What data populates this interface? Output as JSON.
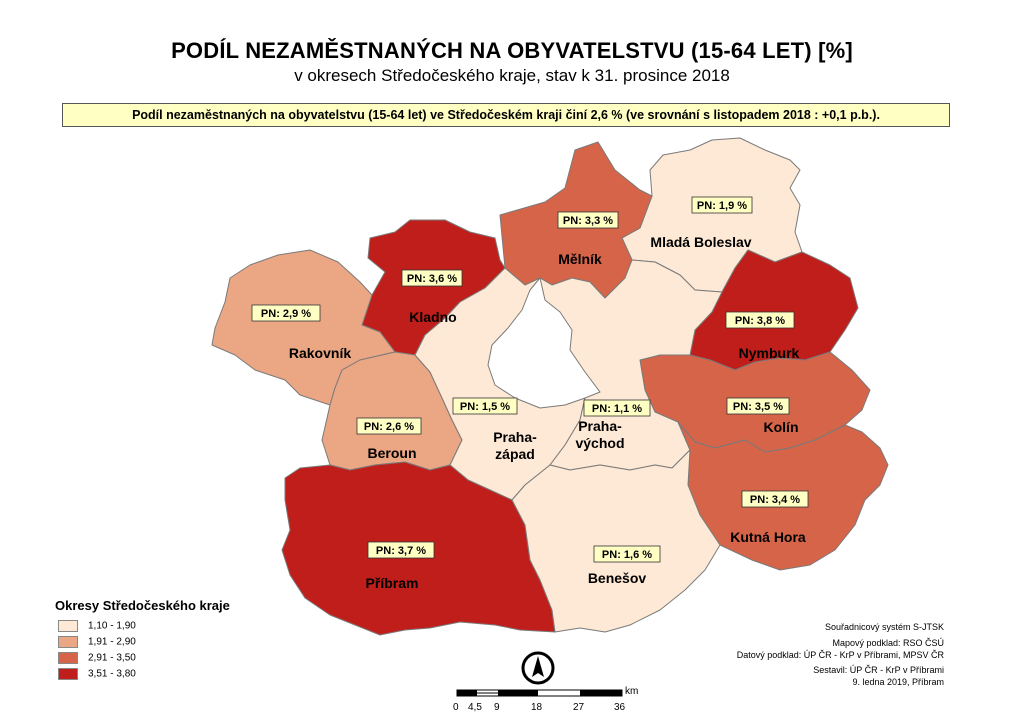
{
  "title": "PODÍL NEZAMĚSTNANÝCH NA OBYVATELSTVU (15-64 LET) [%]",
  "subtitle": "v okresech Středočeského kraje, stav k 31. prosince 2018",
  "info": "Podíl nezaměstnaných na obyvatelstvu (15-64 let) ve Středočeském kraji činí 2,6 % (ve srovnání s listopadem 2018 :   +0,1 p.b.).",
  "colors": {
    "class1": "#fde9d5",
    "class2": "#eba684",
    "class3": "#d56449",
    "class4": "#c01e1a",
    "border": "#7a7a7a"
  },
  "districts": [
    {
      "name": "Mladá Boleslav",
      "label": "PN: 1,9 %",
      "value": 1.9,
      "class": 1
    },
    {
      "name": "Mělník",
      "label": "PN: 3,3 %",
      "value": 3.3,
      "class": 3
    },
    {
      "name": "Kladno",
      "label": "PN: 3,6 %",
      "value": 3.6,
      "class": 4
    },
    {
      "name": "Rakovník",
      "label": "PN: 2,9 %",
      "value": 2.9,
      "class": 2
    },
    {
      "name": "Nymburk",
      "label": "PN: 3,8 %",
      "value": 3.8,
      "class": 4
    },
    {
      "name": "Kolín",
      "label": "PN: 3,5 %",
      "value": 3.5,
      "class": 3
    },
    {
      "name": "Beroun",
      "label": "PN: 2,6 %",
      "value": 2.6,
      "class": 2
    },
    {
      "name": "Praha-\nzápad",
      "label": "PN: 1,5 %",
      "value": 1.5,
      "class": 1
    },
    {
      "name": "Praha-\nvýchod",
      "label": "PN: 1,1 %",
      "value": 1.1,
      "class": 1
    },
    {
      "name": "Kutná Hora",
      "label": "PN: 3,4 %",
      "value": 3.4,
      "class": 3
    },
    {
      "name": "Příbram",
      "label": "PN: 3,7 %",
      "value": 3.7,
      "class": 4
    },
    {
      "name": "Benešov",
      "label": "PN: 1,6 %",
      "value": 1.6,
      "class": 1
    }
  ],
  "legend": {
    "title": "Okresy Středočeského kraje",
    "items": [
      {
        "label": "1,10 - 1,90",
        "color": "#fde9d5"
      },
      {
        "label": "1,91 - 2,90",
        "color": "#eba684"
      },
      {
        "label": "2,91 - 3,50",
        "color": "#d56449"
      },
      {
        "label": "3,51 - 3,80",
        "color": "#c01e1a"
      }
    ]
  },
  "credits": {
    "crs": "Souřadnicový systém S-JTSK",
    "map_source": "Mapový podklad:  RSO ČSÚ",
    "data_source": "Datový podklad: ÚP ČR - KrP v Příbrami, MPSV ČR",
    "compiled": "Sestavil:  ÚP ČR - KrP v Příbrami",
    "date": "9. ledna 2019, Příbram"
  },
  "scale": {
    "unit": "km",
    "ticks": [
      "0",
      "4,5",
      "9",
      "18",
      "27",
      "36"
    ]
  },
  "north_arrow": "north-arrow-icon"
}
